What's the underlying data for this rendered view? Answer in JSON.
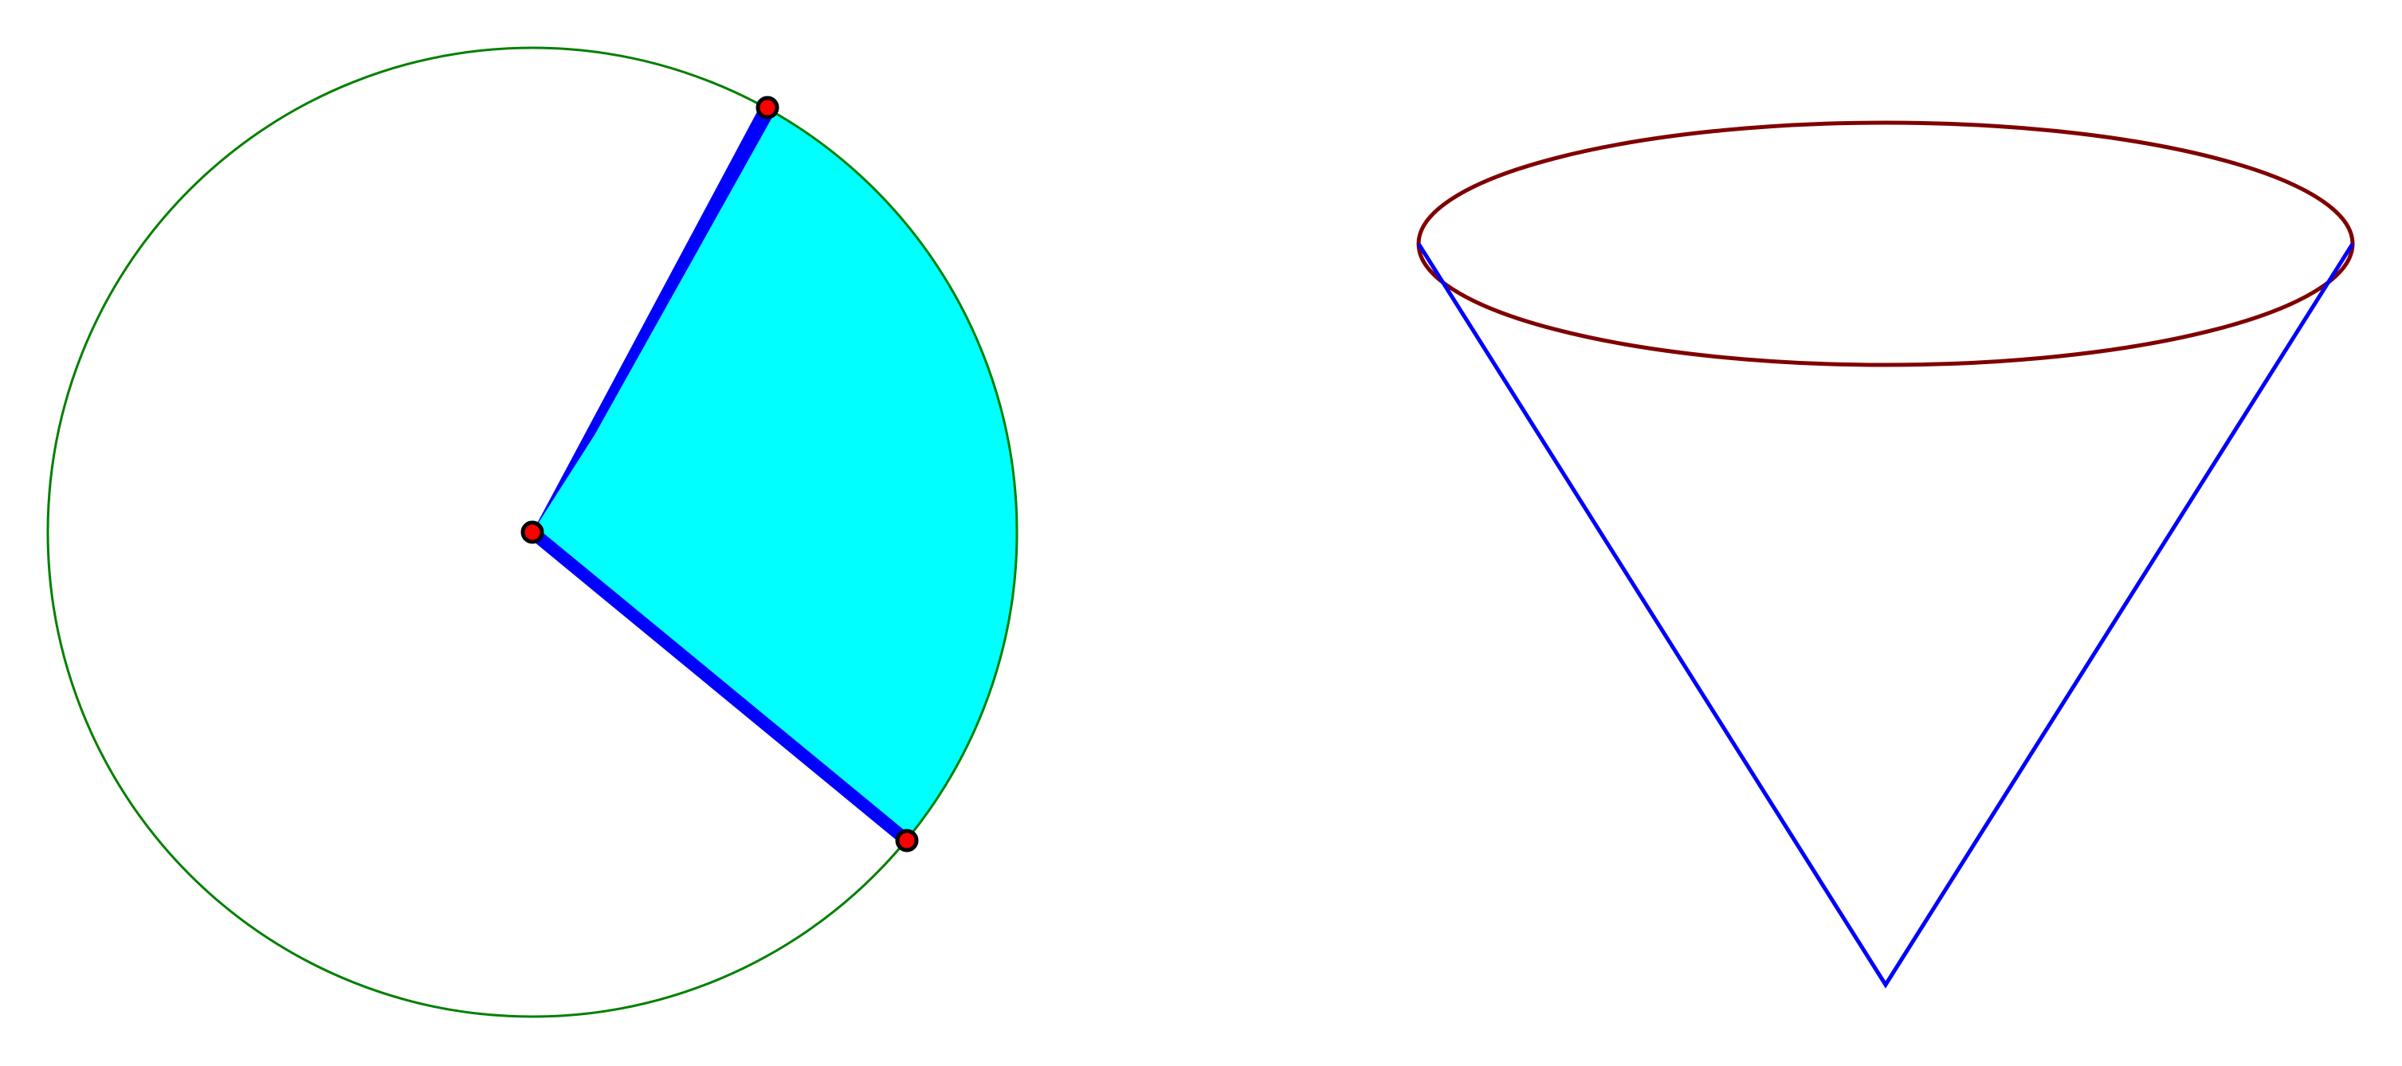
{
  "colors": {
    "circle": "#008000",
    "sector_fill": "#00ffff",
    "radius_lines": "#0000ff",
    "points_fill": "#ff0000",
    "points_stroke": "#000000",
    "cone_rim": "#800000",
    "cone_sides": "#0000ff",
    "background": "#ffffff"
  },
  "figures": [
    {
      "kind": "circle-with-sector",
      "points": 3
    },
    {
      "kind": "cone"
    }
  ]
}
